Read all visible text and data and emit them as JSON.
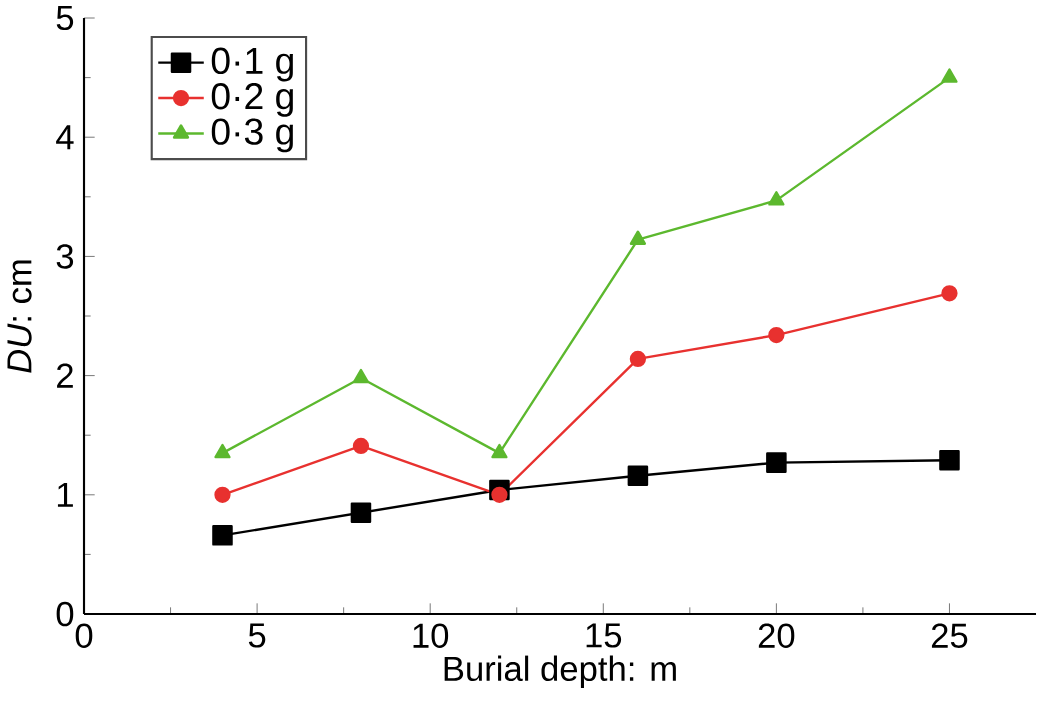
{
  "chart_data": {
    "type": "line",
    "xlabel": "Burial depth: m",
    "ylabel": "*DU*: cm",
    "xlim": [
      0,
      27.5
    ],
    "ylim": [
      0,
      5
    ],
    "xticks": [
      0,
      5,
      10,
      15,
      20,
      25
    ],
    "yticks": [
      0,
      1,
      2,
      3,
      4,
      5
    ],
    "legend": "top left",
    "grid": false,
    "line_style": "solid",
    "x": [
      4,
      8,
      12,
      16,
      20,
      25
    ],
    "series": [
      {
        "name": "0·1 g",
        "color": "#000000",
        "marker": "square",
        "values": [
          0.66,
          0.85,
          1.04,
          1.16,
          1.27,
          1.29
        ]
      },
      {
        "name": "0·2 g",
        "color": "#e8312f",
        "marker": "circle",
        "values": [
          1.0,
          1.41,
          1.0,
          2.14,
          2.34,
          2.69
        ]
      },
      {
        "name": "0·3 g",
        "color": "#5cb82e",
        "marker": "triangle",
        "values": [
          1.35,
          1.98,
          1.35,
          3.14,
          3.47,
          4.5
        ]
      }
    ]
  }
}
